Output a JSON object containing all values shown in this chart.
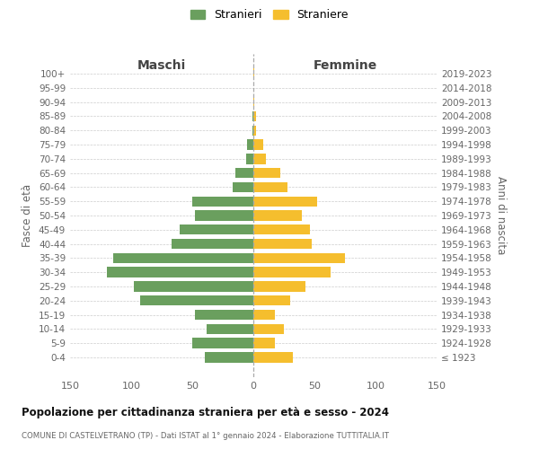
{
  "age_groups": [
    "100+",
    "95-99",
    "90-94",
    "85-89",
    "80-84",
    "75-79",
    "70-74",
    "65-69",
    "60-64",
    "55-59",
    "50-54",
    "45-49",
    "40-44",
    "35-39",
    "30-34",
    "25-29",
    "20-24",
    "15-19",
    "10-14",
    "5-9",
    "0-4"
  ],
  "birth_years": [
    "≤ 1923",
    "1924-1928",
    "1929-1933",
    "1934-1938",
    "1939-1943",
    "1944-1948",
    "1949-1953",
    "1954-1958",
    "1959-1963",
    "1964-1968",
    "1969-1973",
    "1974-1978",
    "1979-1983",
    "1984-1988",
    "1989-1993",
    "1994-1998",
    "1999-2003",
    "2004-2008",
    "2009-2013",
    "2014-2018",
    "2019-2023"
  ],
  "maschi": [
    0,
    0,
    0,
    1,
    1,
    5,
    6,
    15,
    17,
    50,
    48,
    60,
    67,
    115,
    120,
    98,
    93,
    48,
    38,
    50,
    40
  ],
  "femmine": [
    1,
    0,
    1,
    2,
    2,
    8,
    10,
    22,
    28,
    52,
    40,
    46,
    48,
    75,
    63,
    43,
    30,
    18,
    25,
    18,
    32
  ],
  "color_maschi": "#6a9f5e",
  "color_femmine": "#f5be2e",
  "title": "Popolazione per cittadinanza straniera per età e sesso - 2024",
  "subtitle": "COMUNE DI CASTELVETRANO (TP) - Dati ISTAT al 1° gennaio 2024 - Elaborazione TUTTITALIA.IT",
  "label_maschi": "Stranieri",
  "label_femmine": "Straniere",
  "header_left": "Maschi",
  "header_right": "Femmine",
  "ylabel_left": "Fasce di età",
  "ylabel_right": "Anni di nascita",
  "xlim": 150,
  "bg_color": "#ffffff",
  "grid_color": "#cccccc",
  "text_color": "#666666",
  "title_color": "#111111"
}
